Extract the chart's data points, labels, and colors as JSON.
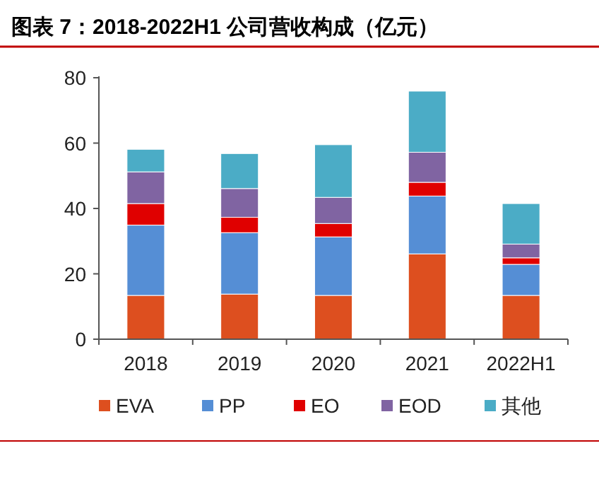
{
  "chart_data": {
    "type": "bar",
    "stacked": true,
    "title": "图表 7：2018-2022H1 公司营收构成（亿元）",
    "categories": [
      "2018",
      "2019",
      "2020",
      "2021",
      "2022H1"
    ],
    "series": [
      {
        "name": "EVA",
        "color": "#dd4f1f",
        "values": [
          13.4,
          13.8,
          13.4,
          26.1,
          13.4
        ]
      },
      {
        "name": "PP",
        "color": "#558ed5",
        "values": [
          21.5,
          18.8,
          17.9,
          17.7,
          9.5
        ]
      },
      {
        "name": "EO",
        "color": "#e00000",
        "values": [
          6.6,
          4.7,
          4.1,
          4.2,
          2.0
        ]
      },
      {
        "name": "EOD",
        "color": "#8064a2",
        "values": [
          9.7,
          8.8,
          8.0,
          9.2,
          4.2
        ]
      },
      {
        "name": "其他",
        "color": "#4bacc6",
        "values": [
          6.9,
          10.7,
          16.1,
          18.7,
          12.4
        ]
      }
    ],
    "ylim": [
      0,
      80
    ],
    "yticks": [
      0,
      20,
      40,
      60,
      80
    ],
    "grid": false,
    "legend": "bottom"
  }
}
